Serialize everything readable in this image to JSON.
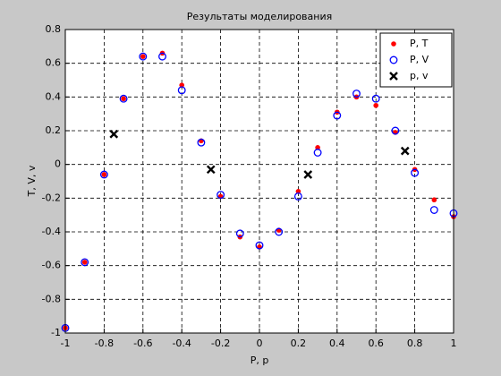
{
  "chart_data": {
    "type": "scatter",
    "title": "Результаты  моделирования",
    "xlabel": "P,  p",
    "ylabel": "T, V, v",
    "xlim": [
      -1,
      1
    ],
    "ylim": [
      -1,
      0.8
    ],
    "xticks": [
      -1,
      -0.8,
      -0.6,
      -0.4,
      -0.2,
      0,
      0.2,
      0.4,
      0.6,
      0.8,
      1
    ],
    "yticks": [
      -1,
      -0.8,
      -0.6,
      -0.4,
      -0.2,
      0,
      0.2,
      0.4,
      0.6,
      0.8
    ],
    "grid": true,
    "legend": "top-right",
    "series": [
      {
        "name": "P, T",
        "color": "#ff0000",
        "marker": "dot",
        "x": [
          -1,
          -0.9,
          -0.8,
          -0.7,
          -0.6,
          -0.5,
          -0.4,
          -0.3,
          -0.2,
          -0.1,
          0,
          0.1,
          0.2,
          0.3,
          0.4,
          0.5,
          0.6,
          0.7,
          0.8,
          0.9,
          1
        ],
        "values": [
          -0.97,
          -0.58,
          -0.06,
          0.39,
          0.64,
          0.66,
          0.47,
          0.14,
          -0.19,
          -0.43,
          -0.49,
          -0.39,
          -0.16,
          0.1,
          0.31,
          0.4,
          0.35,
          0.19,
          -0.03,
          -0.21,
          -0.31
        ]
      },
      {
        "name": "P, V",
        "color": "#0000ff",
        "marker": "circle",
        "x": [
          -1,
          -0.9,
          -0.8,
          -0.7,
          -0.6,
          -0.5,
          -0.4,
          -0.3,
          -0.2,
          -0.1,
          0,
          0.1,
          0.2,
          0.3,
          0.4,
          0.5,
          0.6,
          0.7,
          0.8,
          0.9,
          1
        ],
        "values": [
          -0.97,
          -0.58,
          -0.06,
          0.39,
          0.64,
          0.64,
          0.44,
          0.13,
          -0.18,
          -0.41,
          -0.48,
          -0.4,
          -0.19,
          0.07,
          0.29,
          0.42,
          0.39,
          0.2,
          -0.05,
          -0.27,
          -0.29
        ]
      },
      {
        "name": "p, v",
        "color": "#000000",
        "marker": "x",
        "x": [
          -0.75,
          -0.25,
          0.25,
          0.75
        ],
        "values": [
          0.18,
          -0.03,
          -0.06,
          0.08
        ]
      }
    ]
  }
}
